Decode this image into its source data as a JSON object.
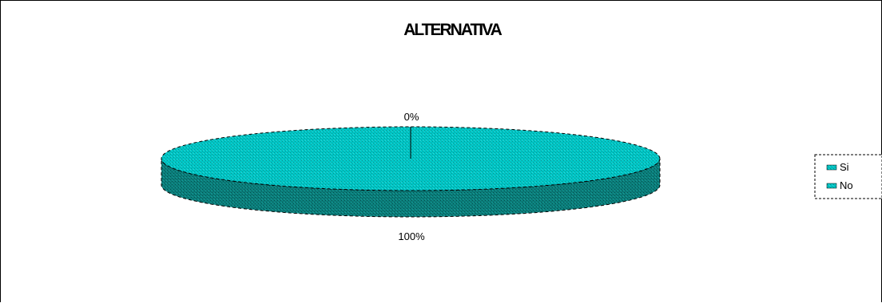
{
  "chart_data": {
    "type": "pie",
    "title": "ALTERNATIVA",
    "categories": [
      "Si",
      "No"
    ],
    "values": [
      0,
      100
    ],
    "data_labels": [
      "0%",
      "100%"
    ],
    "legend_position": "right",
    "colors": {
      "top": "#00C4C4",
      "side": "#007A78",
      "border": "#000000"
    }
  }
}
